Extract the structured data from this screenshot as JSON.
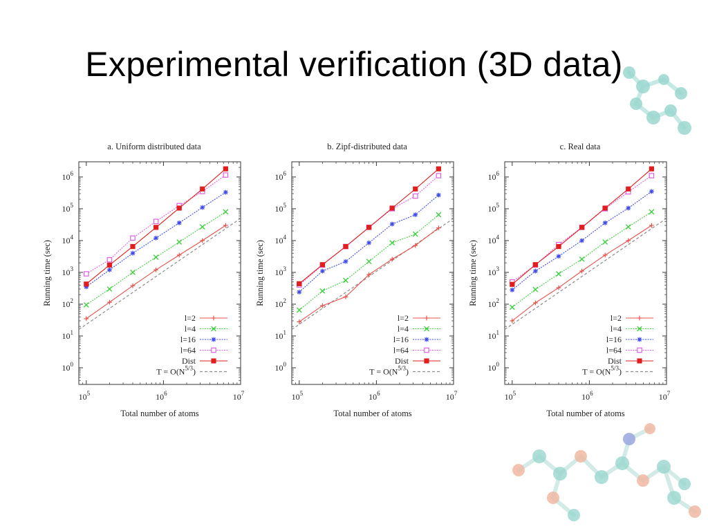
{
  "slide": {
    "title": "Experimental verification (3D data)"
  },
  "colors": {
    "l2": "#e8504a",
    "l4": "#3fd03f",
    "l16": "#3d48ee",
    "l64": "#e25ce8",
    "dist": "#e11d1d",
    "ref": "#8a8a8a",
    "axis": "#333333"
  },
  "chart_data": [
    {
      "type": "line",
      "title": "a. Uniform distributed data",
      "xlabel": "Total number of atoms",
      "ylabel": "Running time (sec)",
      "xscale": "log",
      "yscale": "log",
      "xlim": [
        80000,
        10000000
      ],
      "ylim": [
        0.3,
        3000000
      ],
      "xticks": [
        {
          "base": "10",
          "exp": "5"
        },
        {
          "base": "10",
          "exp": "6"
        },
        {
          "base": "10",
          "exp": "7"
        }
      ],
      "yticks": [
        {
          "base": "10",
          "exp": "0"
        },
        {
          "base": "10",
          "exp": "1"
        },
        {
          "base": "10",
          "exp": "2"
        },
        {
          "base": "10",
          "exp": "3"
        },
        {
          "base": "10",
          "exp": "4"
        },
        {
          "base": "10",
          "exp": "5"
        },
        {
          "base": "10",
          "exp": "6"
        }
      ],
      "x": [
        100000,
        200000,
        400000,
        800000,
        1600000,
        3200000,
        6400000
      ],
      "grid": false,
      "legend_position": "bottom-right",
      "series": [
        {
          "name": "l=2",
          "key": "l2",
          "marker": "plus",
          "values": [
            35,
            115,
            380,
            1200,
            3500,
            10000,
            30000
          ]
        },
        {
          "name": "l=4",
          "key": "l4",
          "marker": "cross",
          "values": [
            95,
            300,
            1000,
            3000,
            9000,
            27000,
            80000
          ]
        },
        {
          "name": "l=16",
          "key": "l16",
          "marker": "star",
          "values": [
            350,
            1200,
            4000,
            12000,
            36000,
            110000,
            330000
          ]
        },
        {
          "name": "l=64",
          "key": "l64",
          "marker": "opensquare",
          "values": [
            900,
            2500,
            12000,
            40000,
            125000,
            350000,
            1150000
          ]
        },
        {
          "name": "Dist",
          "key": "dist",
          "marker": "filledsquare",
          "values": [
            430,
            1700,
            6500,
            26000,
            105000,
            420000,
            1800000
          ]
        }
      ],
      "reference": {
        "name": "T = O(N",
        "sup": "5/3",
        "close": ")",
        "key": "ref",
        "x": [
          80000,
          10000000
        ],
        "values": [
          16,
          50000
        ]
      }
    },
    {
      "type": "line",
      "title": "b. Zipf-distributed data",
      "xlabel": "Total number of atoms",
      "ylabel": "Running time (sec)",
      "xscale": "log",
      "yscale": "log",
      "xlim": [
        80000,
        10000000
      ],
      "ylim": [
        0.3,
        3000000
      ],
      "xticks": [
        {
          "base": "10",
          "exp": "5"
        },
        {
          "base": "10",
          "exp": "6"
        },
        {
          "base": "10",
          "exp": "7"
        }
      ],
      "yticks": [
        {
          "base": "10",
          "exp": "0"
        },
        {
          "base": "10",
          "exp": "1"
        },
        {
          "base": "10",
          "exp": "2"
        },
        {
          "base": "10",
          "exp": "3"
        },
        {
          "base": "10",
          "exp": "4"
        },
        {
          "base": "10",
          "exp": "5"
        },
        {
          "base": "10",
          "exp": "6"
        }
      ],
      "x": [
        100000,
        200000,
        400000,
        800000,
        1600000,
        3200000,
        6400000
      ],
      "grid": false,
      "legend_position": "bottom-right",
      "series": [
        {
          "name": "l=2",
          "key": "l2",
          "marker": "plus",
          "values": [
            28,
            90,
            170,
            850,
            2600,
            7000,
            25000
          ]
        },
        {
          "name": "l=4",
          "key": "l4",
          "marker": "cross",
          "values": [
            65,
            260,
            560,
            2200,
            8500,
            16000,
            65000
          ]
        },
        {
          "name": "l=16",
          "key": "l16",
          "marker": "star",
          "values": [
            240,
            1100,
            2200,
            8500,
            33000,
            65000,
            270000
          ]
        },
        {
          "name": "l=64",
          "key": "l64",
          "marker": "opensquare",
          "values": [
            400,
            1700,
            6500,
            26000,
            100000,
            250000,
            1100000
          ]
        },
        {
          "name": "Dist",
          "key": "dist",
          "marker": "filledsquare",
          "values": [
            440,
            1750,
            6500,
            26000,
            105000,
            420000,
            1800000
          ]
        }
      ],
      "reference": {
        "name": "T = O(N",
        "sup": "5/3",
        "close": ")",
        "key": "ref",
        "x": [
          80000,
          10000000
        ],
        "values": [
          16,
          50000
        ]
      }
    },
    {
      "type": "line",
      "title": "c. Real data",
      "xlabel": "Total number of atoms",
      "ylabel": "Running time (sec)",
      "xscale": "log",
      "yscale": "log",
      "xlim": [
        80000,
        10000000
      ],
      "ylim": [
        0.3,
        3000000
      ],
      "xticks": [
        {
          "base": "10",
          "exp": "5"
        },
        {
          "base": "10",
          "exp": "6"
        },
        {
          "base": "10",
          "exp": "7"
        }
      ],
      "yticks": [
        {
          "base": "10",
          "exp": "0"
        },
        {
          "base": "10",
          "exp": "1"
        },
        {
          "base": "10",
          "exp": "2"
        },
        {
          "base": "10",
          "exp": "3"
        },
        {
          "base": "10",
          "exp": "4"
        },
        {
          "base": "10",
          "exp": "5"
        },
        {
          "base": "10",
          "exp": "6"
        }
      ],
      "x": [
        100000,
        200000,
        400000,
        800000,
        1600000,
        3200000,
        6400000
      ],
      "grid": false,
      "legend_position": "bottom-right",
      "series": [
        {
          "name": "l=2",
          "key": "l2",
          "marker": "plus",
          "values": [
            30,
            110,
            330,
            1100,
            3500,
            10000,
            30000
          ]
        },
        {
          "name": "l=4",
          "key": "l4",
          "marker": "cross",
          "values": [
            80,
            290,
            900,
            2600,
            9000,
            27000,
            80000
          ]
        },
        {
          "name": "l=16",
          "key": "l16",
          "marker": "star",
          "values": [
            280,
            1100,
            3200,
            10000,
            36000,
            105000,
            350000
          ]
        },
        {
          "name": "l=64",
          "key": "l64",
          "marker": "opensquare",
          "values": [
            500,
            1700,
            7500,
            26000,
            100000,
            340000,
            1100000
          ]
        },
        {
          "name": "Dist",
          "key": "dist",
          "marker": "filledsquare",
          "values": [
            420,
            1750,
            6500,
            26000,
            105000,
            420000,
            1800000
          ]
        }
      ],
      "reference": {
        "name": "T = O(N",
        "sup": "5/3",
        "close": ")",
        "key": "ref",
        "x": [
          80000,
          10000000
        ],
        "values": [
          16,
          50000
        ]
      }
    }
  ]
}
